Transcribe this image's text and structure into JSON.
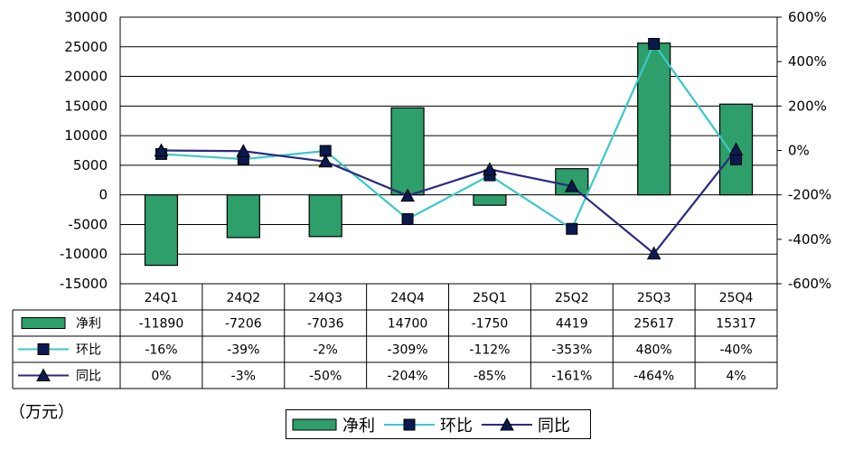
{
  "chart_data": {
    "type": "bar",
    "categories": [
      "24Q1",
      "24Q2",
      "24Q3",
      "24Q4",
      "25Q1",
      "25Q2",
      "25Q3",
      "25Q4"
    ],
    "unit": "（万元）",
    "y_left": {
      "ylim": [
        -15000,
        30000
      ],
      "ticks": [
        "30000",
        "25000",
        "20000",
        "15000",
        "10000",
        "5000",
        "0",
        "-5000",
        "-10000",
        "-15000"
      ]
    },
    "y_right": {
      "ylim": [
        -600,
        600
      ],
      "ticks": [
        "600%",
        "400%",
        "200%",
        "0%",
        "-200%",
        "-400%",
        "-600%"
      ]
    },
    "series": [
      {
        "name": "净利",
        "type": "bar",
        "axis": "left",
        "color": "#2e9e6a",
        "values": [
          -11890,
          -7206,
          -7036,
          14700,
          -1750,
          4419,
          25617,
          15317
        ],
        "labels": [
          "-11890",
          "-7206",
          "-7036",
          "14700",
          "-1750",
          "4419",
          "25617",
          "15317"
        ]
      },
      {
        "name": "环比",
        "type": "line",
        "axis": "right",
        "color": "#3cc8c8",
        "marker": "square",
        "values": [
          -16,
          -39,
          -2,
          -309,
          -112,
          -353,
          480,
          -40
        ],
        "labels": [
          "-16%",
          "-39%",
          "-2%",
          "-309%",
          "-112%",
          "-353%",
          "480%",
          "-40%"
        ]
      },
      {
        "name": "同比",
        "type": "line",
        "axis": "right",
        "color": "#2a2a80",
        "marker": "triangle",
        "values": [
          0,
          -3,
          -50,
          -204,
          -85,
          -161,
          -464,
          4
        ],
        "labels": [
          "0%",
          "-3%",
          "-50%",
          "-204%",
          "-85%",
          "-161%",
          "-464%",
          "4%"
        ]
      }
    ],
    "grid": true,
    "legend": "bottom-center",
    "table": true
  }
}
